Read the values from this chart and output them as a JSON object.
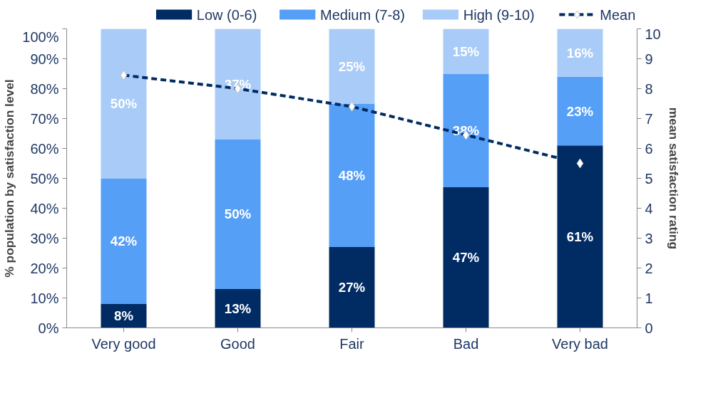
{
  "chart_data": {
    "type": "bar",
    "stacked": true,
    "categories": [
      "Very good",
      "Good",
      "Fair",
      "Bad",
      "Very bad"
    ],
    "ylabel": "% population by satisfaction level",
    "y2label": "mean satisfaction rating",
    "ylim": [
      0,
      100
    ],
    "yticks": [
      {
        "value": 0,
        "label": "0%"
      },
      {
        "value": 10,
        "label": "10%"
      },
      {
        "value": 20,
        "label": "20%"
      },
      {
        "value": 30,
        "label": "30%"
      },
      {
        "value": 40,
        "label": "40%"
      },
      {
        "value": 50,
        "label": "50%"
      },
      {
        "value": 60,
        "label": "60%"
      },
      {
        "value": 70,
        "label": "70%"
      },
      {
        "value": 80,
        "label": "80%"
      },
      {
        "value": 90,
        "label": "90%"
      },
      {
        "value": 100,
        "label": "100%"
      }
    ],
    "y2lim": [
      0,
      10
    ],
    "y2ticks": [
      0,
      1,
      2,
      3,
      4,
      5,
      6,
      7,
      8,
      9,
      10
    ],
    "legend": "top",
    "grid": false,
    "series": [
      {
        "name": "Low (0-6)",
        "color": "#002b63",
        "values": [
          8,
          13,
          27,
          47,
          61
        ],
        "value_labels": [
          "8%",
          "13%",
          "27%",
          "47%",
          "61%"
        ]
      },
      {
        "name": "Medium (7-8)",
        "color": "#559ff7",
        "values": [
          42,
          50,
          48,
          38,
          23
        ],
        "value_labels": [
          "42%",
          "50%",
          "48%",
          "38%",
          "23%"
        ]
      },
      {
        "name": "High (9-10)",
        "color": "#a8cbf8",
        "values": [
          50,
          37,
          25,
          15,
          16
        ],
        "value_labels": [
          "50%",
          "37%",
          "25%",
          "15%",
          "16%"
        ]
      },
      {
        "name": "Mean",
        "type": "line",
        "axis": "y2",
        "color": "#002b63",
        "line_style": "dashed",
        "marker": "diamond",
        "values": [
          8.45,
          8.0,
          7.4,
          6.45,
          5.5
        ]
      }
    ]
  }
}
